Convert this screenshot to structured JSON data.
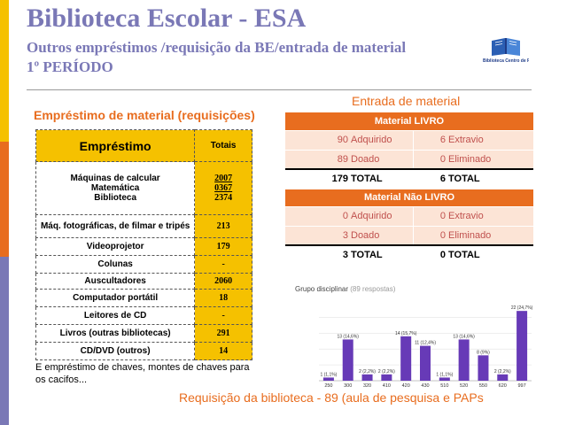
{
  "header": {
    "title": "Biblioteca Escolar - ESA",
    "subtitle1": "Outros empréstimos /requisição da BE/entrada de material",
    "subtitle2": "1º PERÍODO"
  },
  "logo": {
    "text": "Biblioteca Centro de Recursos"
  },
  "left_section": {
    "heading": "Empréstimo de material (requisições)",
    "table": {
      "col1": "Empréstimo",
      "col2": "Totais",
      "rows": [
        {
          "label_lines": [
            "Máquinas de calcular",
            "Matemática",
            "Biblioteca"
          ],
          "values": [
            "2007",
            "0367",
            "2374"
          ]
        },
        {
          "label": "Máq. fotográficas, de filmar e tripés",
          "value": "213"
        },
        {
          "label": "Videoprojetor",
          "value": "179"
        },
        {
          "label": "Colunas",
          "value": "-"
        },
        {
          "label": "Auscultadores",
          "value": "2060"
        },
        {
          "label": "Computador portátil",
          "value": "18"
        },
        {
          "label": "Leitores de CD",
          "value": "-"
        },
        {
          "label": "Livros (outras bibliotecas)",
          "value": "291"
        },
        {
          "label": "CD/DVD (outros)",
          "value": "14"
        }
      ]
    },
    "note": "E empréstimo de chaves, montes de chaves para os cacifos..."
  },
  "right_section": {
    "heading": "Entrada de material",
    "livro": {
      "header": "Material  LIVRO",
      "rows": [
        {
          "n1": "90",
          "l1": "Adquirido",
          "n2": "6",
          "l2": "Extravio"
        },
        {
          "n1": "89",
          "l1": "Doado",
          "n2": "0",
          "l2": "Eliminado"
        }
      ],
      "total": {
        "n1": "179",
        "l1": "TOTAL",
        "n2": "6",
        "l2": "TOTAL"
      }
    },
    "nao_livro": {
      "header": "Material Não  LIVRO",
      "rows": [
        {
          "n1": "0",
          "l1": "Adquirido",
          "n2": "0",
          "l2": "Extravio"
        },
        {
          "n1": "3",
          "l1": "Doado",
          "n2": "0",
          "l2": "Eliminado"
        }
      ],
      "total": {
        "n1": "3",
        "l1": "TOTAL",
        "n2": "0",
        "l2": "TOTAL"
      }
    }
  },
  "chart_title": "Grupo disciplinar",
  "chart_subtitle": "(89 respostas)",
  "chart_data": {
    "type": "bar",
    "categories": [
      "250",
      "300",
      "320",
      "410",
      "420",
      "430",
      "510",
      "520",
      "550",
      "620",
      "997"
    ],
    "values": [
      1,
      13,
      2,
      2,
      14,
      11,
      1,
      13,
      8,
      2,
      22
    ],
    "labels": [
      "1 (1,1%)",
      "13 (14,6%)",
      "2 (2,2%)",
      "2 (2,2%)",
      "14 (15,7%)",
      "11 (12,4%)",
      "1 (1,1%)",
      "13 (14,6%)",
      "8 (9%)",
      "2 (2,2%)",
      "22 (24,7%)"
    ],
    "ylim": [
      0,
      24
    ],
    "color": "#673ab7",
    "grid": true
  },
  "footer": "Requisição  da biblioteca  - 89 (aula de pesquisa  e PAPs"
}
